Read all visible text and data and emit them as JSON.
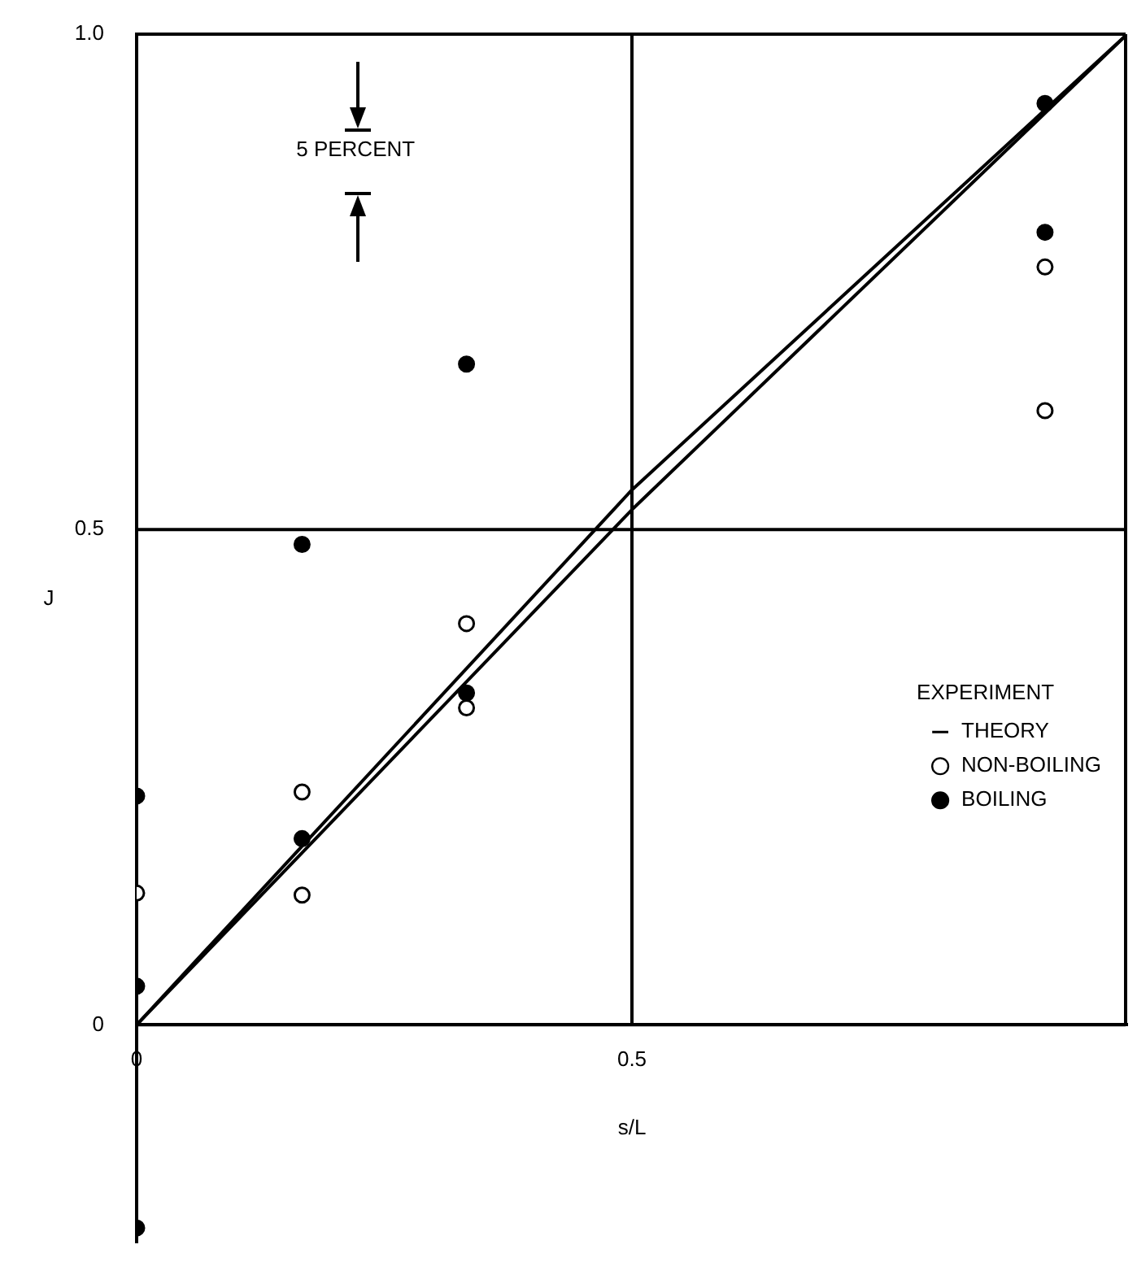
{
  "chart_data": {
    "type": "scatter",
    "xlabel": "s/L",
    "ylabel": "J",
    "xlim": [
      0,
      1
    ],
    "ylim": [
      -0.22,
      1
    ],
    "xticks": [
      0,
      0.5
    ],
    "yticks": [
      0,
      0.5,
      {
        "value": 1,
        "label": "1.0"
      }
    ],
    "grid": true,
    "legend": "right",
    "legend_title": "EXPERIMENT",
    "marker": "circle",
    "annotations": [
      "5 PERCENT"
    ],
    "series": [
      {
        "name": "THEORY",
        "type": "line",
        "marker": "none",
        "color": "#000000",
        "x": [
          0,
          0.5,
          1
        ],
        "values": [
          0,
          0.54,
          1
        ]
      },
      {
        "type": "line",
        "marker": "none",
        "color": "#000000",
        "x": [
          0,
          0.5,
          1
        ],
        "values": [
          0,
          0.52,
          1
        ]
      },
      {
        "name": "NON-BOILING",
        "type": "scatter",
        "color": "#000000",
        "x": [
          0,
          0.167,
          0.167,
          0.333,
          0.333,
          0.917,
          0.917
        ],
        "values": [
          0.133,
          0.235,
          0.131,
          0.405,
          0.32,
          0.765,
          0.62
        ]
      },
      {
        "name": "BOILING",
        "type": "scatter",
        "color": "#000000",
        "x": [
          0,
          0,
          0,
          0.167,
          0.167,
          0.333,
          0.333,
          0.917,
          0.917
        ],
        "values": [
          0.231,
          0.039,
          -0.205,
          0.485,
          0.188,
          0.667,
          0.335,
          0.93,
          0.8
        ]
      }
    ]
  }
}
